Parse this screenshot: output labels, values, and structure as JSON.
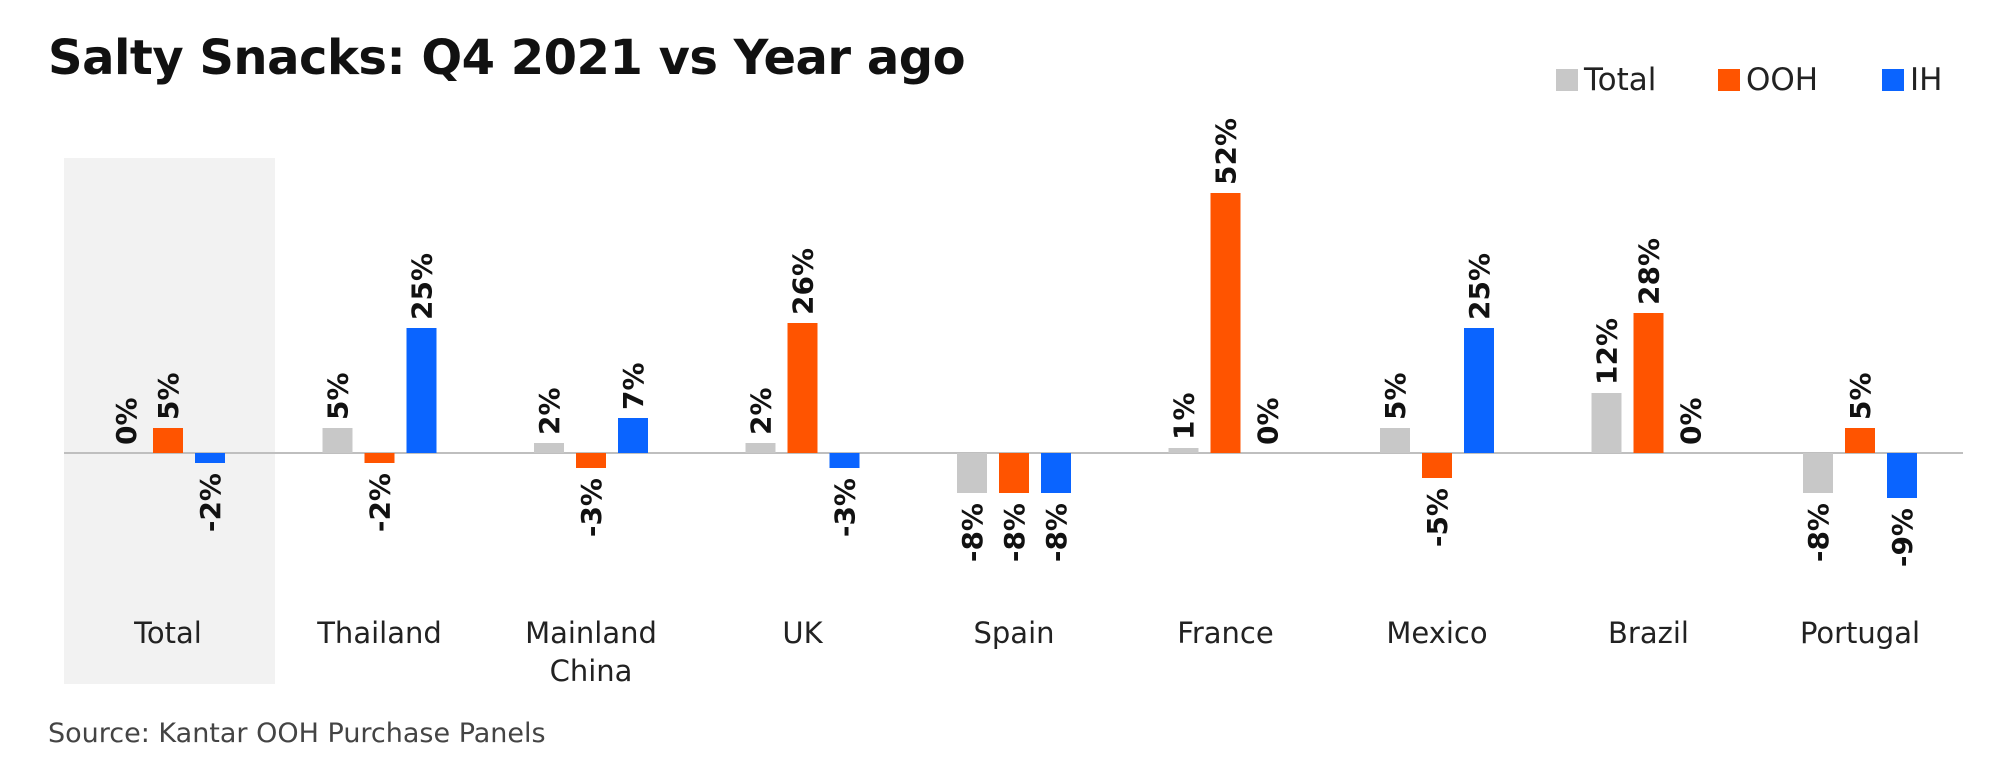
{
  "title": "Salty Snacks: Q4 2021 vs Year ago",
  "source": "Source: Kantar OOH Purchase Panels",
  "colors": {
    "Total": "#c8c8c8",
    "OOH": "#ff5400",
    "IH": "#0a64ff",
    "highlight": "#f2f2f2",
    "baseline": "#bfbfbf"
  },
  "chart_data": {
    "type": "bar",
    "title": "Salty Snacks: Q4 2021 vs Year ago",
    "categories": [
      [
        "Total"
      ],
      [
        "Thailand"
      ],
      [
        "Mainland",
        "China"
      ],
      [
        "UK"
      ],
      [
        "Spain"
      ],
      [
        "France"
      ],
      [
        "Mexico"
      ],
      [
        "Brazil"
      ],
      [
        "Portugal"
      ]
    ],
    "series": [
      {
        "name": "Total",
        "values": [
          0,
          5,
          2,
          2,
          -8,
          1,
          5,
          12,
          -8
        ],
        "labels": [
          "0%",
          "5%",
          "2%",
          "2%",
          "-8%",
          "1%",
          "5%",
          "12%",
          "-8%"
        ]
      },
      {
        "name": "OOH",
        "values": [
          5,
          -2,
          -3,
          26,
          -8,
          52,
          -5,
          28,
          5
        ],
        "labels": [
          "5%",
          "-2%",
          "-3%",
          "26%",
          "-8%",
          "52%",
          "-5%",
          "28%",
          "5%"
        ]
      },
      {
        "name": "IH",
        "values": [
          -2,
          25,
          7,
          -3,
          -8,
          0,
          25,
          0,
          -9
        ],
        "labels": [
          "-2%",
          "25%",
          "7%",
          "-3%",
          "-8%",
          "0%",
          "25%",
          "0%",
          "-9%"
        ]
      }
    ],
    "legend_position": "top-right",
    "grid": false
  }
}
